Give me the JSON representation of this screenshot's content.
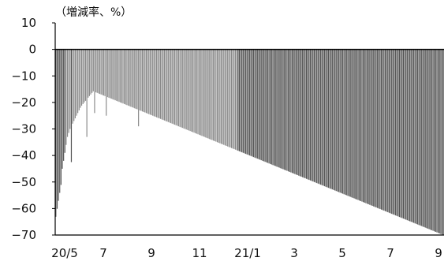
{
  "chart_data": {
    "type": "bar",
    "unit_label": "（増減率、%）",
    "title": "",
    "xlabel": "",
    "ylabel": "",
    "ylim": [
      -70,
      10
    ],
    "y_ticks": [
      10,
      0,
      -10,
      -20,
      -30,
      -40,
      -50,
      -60,
      -70
    ],
    "y_tick_labels": [
      "10",
      "0",
      "−10",
      "−20",
      "−30",
      "−40",
      "−50",
      "−60",
      "−70"
    ],
    "x_tick_labels": [
      "20/5",
      "7",
      "9",
      "11",
      "21/1",
      "3",
      "5",
      "7",
      "9"
    ],
    "x_tick_positions": [
      2,
      61,
      122,
      183,
      244,
      303,
      364,
      425,
      486
    ],
    "grid": false,
    "bar_color": "#888888",
    "spike_color": "#555555",
    "values": [
      -63.1,
      -60.1,
      -57.1,
      -54.1,
      -51.1,
      -45,
      -42,
      -39,
      -36,
      -33,
      -31.5,
      -30,
      -42.5,
      -28,
      -27,
      -26,
      -25,
      -24,
      -23,
      -22,
      -21.2,
      -20.6,
      -20,
      -19.4,
      -33,
      -18.2,
      -17.6,
      -17,
      -16.4,
      -15.8,
      -24,
      -16.2,
      -16.4,
      -16.6,
      -16.8,
      -17,
      -17.2,
      -17.4,
      -17.6,
      -25,
      -18,
      -18.2,
      -18.4,
      -18.6,
      -18.8,
      -19,
      -19.2,
      -19.4,
      -19.6,
      -19.8,
      -20,
      -20.2,
      -20.4,
      -20.6,
      -20.8,
      -21,
      -21.2,
      -21.4,
      -21.6,
      -21.8,
      -22,
      -22.2,
      -22.4,
      -22.6,
      -29,
      -23,
      -23.2,
      -23.4,
      -23.6,
      -23.8,
      -24,
      -24.2,
      -24.4,
      -24.6,
      -24.8,
      -25,
      -25.2,
      -25.4,
      -25.6,
      -25.8,
      -26,
      -26.2,
      -26.4,
      -26.6,
      -26.8,
      -27,
      -27.2,
      -27.4,
      -27.6,
      -27.8,
      -28,
      -28.2,
      -28.4,
      -28.6,
      -28.8,
      -29,
      -29.2,
      -29.4,
      -29.6,
      -29.8,
      -30,
      -30.2,
      -30.4,
      -30.6,
      -30.8,
      -31,
      -31.2,
      -31.4,
      -31.6,
      -31.8,
      -32,
      -32.2,
      -32.4,
      -32.6,
      -32.8,
      -33,
      -33.2,
      -33.4,
      -33.6,
      -33.8,
      -34,
      -34.2,
      -34.4,
      -34.6,
      -34.8,
      -35,
      -35.2,
      -35.4,
      -35.6,
      -35.8,
      -36,
      -36.2,
      -36.4,
      -36.6,
      -36.8,
      -37,
      -37.2,
      -37.4,
      -37.6,
      -37.8,
      -38,
      -38.2,
      -38.4,
      -38.6,
      -38.8,
      -39,
      -39.2,
      -39.4,
      -39.6,
      -39.8,
      -40,
      -40.2,
      -40.4,
      -40.6,
      -40.8,
      -41,
      -41.2,
      -41.4,
      -41.6,
      -41.8,
      -42,
      -42.2,
      -42.4,
      -42.6,
      -42.8,
      -43,
      -43.2,
      -43.4,
      -43.6,
      -43.8,
      -44,
      -44.2,
      -44.4,
      -44.6,
      -44.8,
      -45,
      -45.2,
      -45.4,
      -45.6,
      -45.8,
      -46,
      -46.2,
      -46.4,
      -46.6,
      -46.8,
      -47,
      -47.2,
      -47.4,
      -47.6,
      -47.8,
      -48,
      -48.2,
      -48.4,
      -48.6,
      -48.8,
      -49,
      -49.2,
      -49.4,
      -49.6,
      -49.8,
      -50,
      -50.2,
      -50.4,
      -50.6,
      -50.8,
      -51,
      -51.2,
      -51.4,
      -51.6,
      -51.8,
      -52,
      -52.2,
      -52.4,
      -52.6,
      -52.8,
      -53,
      -53.2,
      -53.4,
      -53.6,
      -53.8,
      -54,
      -54.2,
      -54.4,
      -54.6,
      -54.8,
      -55,
      -55.2,
      -55.4,
      -55.6,
      -55.8,
      -56,
      -56.2,
      -56.4,
      -56.6,
      -56.8,
      -57,
      -57.2,
      -57.4,
      -57.6,
      -57.8,
      -58,
      -58.2,
      -58.4,
      -58.6,
      -58.8,
      -59,
      -59.2,
      -59.4,
      -59.6,
      -59.8,
      -60,
      -60.2,
      -60.4,
      -60.6,
      -60.8,
      -61,
      -61.2,
      -61.4,
      -61.6,
      -61.8,
      -62,
      -62.2,
      -62.4,
      -62.6,
      -62.8,
      -63,
      -63.2,
      -63.4,
      -63.6,
      -63.8,
      -64,
      -64.2,
      -64.4,
      -64.6,
      -64.8,
      -65,
      -65.2,
      -65.4,
      -65.6,
      -65.8,
      -66,
      -66.2,
      -66.4,
      -66.6,
      -66.8,
      -67,
      -67.2,
      -67.4,
      -67.6,
      -67.8,
      -68,
      -68.2,
      -68.4,
      -68.6,
      -68.8,
      -69,
      -69.2,
      -69.4,
      -69.6,
      -69.8,
      -70
    ]
  }
}
